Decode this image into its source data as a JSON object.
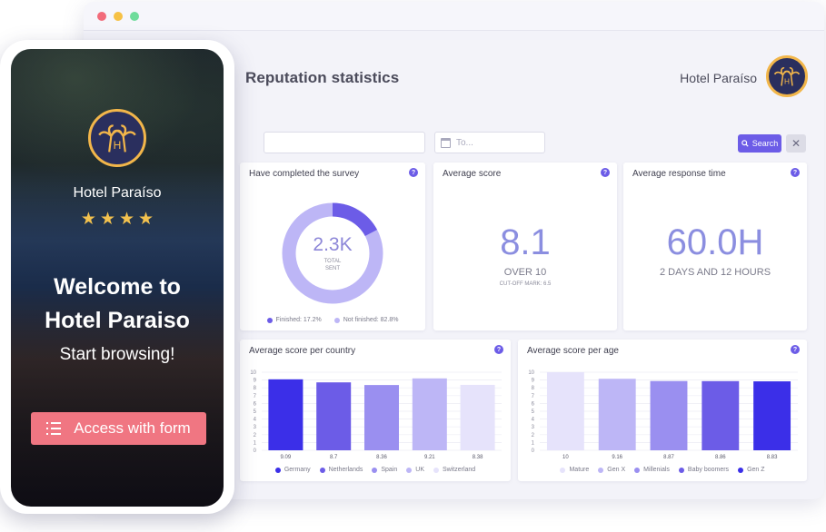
{
  "window": {
    "controls": [
      "close",
      "minimize",
      "maximize"
    ]
  },
  "header": {
    "title": "Reputation statistics",
    "hotel_name": "Hotel Paraíso",
    "logo_icon": "palm-tree-logo-icon"
  },
  "filters": {
    "from_placeholder": "",
    "to_placeholder": "To...",
    "search_label": "Search",
    "clear_label": "✕"
  },
  "cards": {
    "survey": {
      "title": "Have completed the survey",
      "value": "2.3K",
      "sub_line1": "TOTAL",
      "sub_line2": "SENT",
      "finished_label": "Finished: 17.2%",
      "not_finished_label": "Not finished: 82.8%",
      "finished_pct": 17.2,
      "not_finished_pct": 82.8
    },
    "average_score": {
      "title": "Average score",
      "value": "8.1",
      "sub": "OVER 10",
      "tiny": "CUT-OFF MARK: 6.5"
    },
    "response_time": {
      "title": "Average response time",
      "value": "60.0H",
      "sub": "2 DAYS AND 12 HOURS"
    }
  },
  "chart_data": [
    {
      "type": "bar",
      "title": "Average score per country",
      "categories": [
        "Germany",
        "Netherlands",
        "Spain",
        "UK",
        "Switzerland"
      ],
      "values": [
        9.09,
        8.7,
        8.36,
        9.21,
        8.38
      ],
      "value_labels": [
        "9.09",
        "8.7",
        "8.36",
        "9.21",
        "8.38"
      ],
      "colors": [
        "#3b2fe8",
        "#6c5ce7",
        "#9a8ff0",
        "#bdb6f6",
        "#e6e3fb"
      ],
      "ylim": [
        0,
        10
      ],
      "yticks": [
        "0",
        "1",
        "2",
        "3",
        "4",
        "5",
        "6",
        "7",
        "8",
        "9",
        "10"
      ],
      "grid": true,
      "legend": "bottom"
    },
    {
      "type": "bar",
      "title": "Average score per age",
      "categories": [
        "Mature",
        "Gen X",
        "Millenials",
        "Baby boomers",
        "Gen Z"
      ],
      "values": [
        10,
        9.16,
        8.87,
        8.86,
        8.83
      ],
      "value_labels": [
        "10",
        "9.16",
        "8.87",
        "8.86",
        "8.83"
      ],
      "colors": [
        "#e6e3fb",
        "#bdb6f6",
        "#9a8ff0",
        "#6c5ce7",
        "#3b2fe8"
      ],
      "ylim": [
        0,
        10
      ],
      "yticks": [
        "0",
        "1",
        "2",
        "3",
        "4",
        "5",
        "6",
        "7",
        "8",
        "9",
        "10"
      ],
      "grid": true,
      "legend": "bottom"
    }
  ],
  "help_label": "?",
  "phone": {
    "hotel_name": "Hotel Paraíso",
    "stars": 4,
    "star_glyph": "★",
    "welcome_line1": "Welcome to",
    "welcome_line2": "Hotel Paraiso",
    "subtitle": "Start browsing!",
    "button_label": "Access with form"
  },
  "colors": {
    "accent": "#6c5ce7",
    "cta": "#f07682",
    "logo_bg": "#2a2f5e",
    "logo_ring": "#f2b64a"
  }
}
